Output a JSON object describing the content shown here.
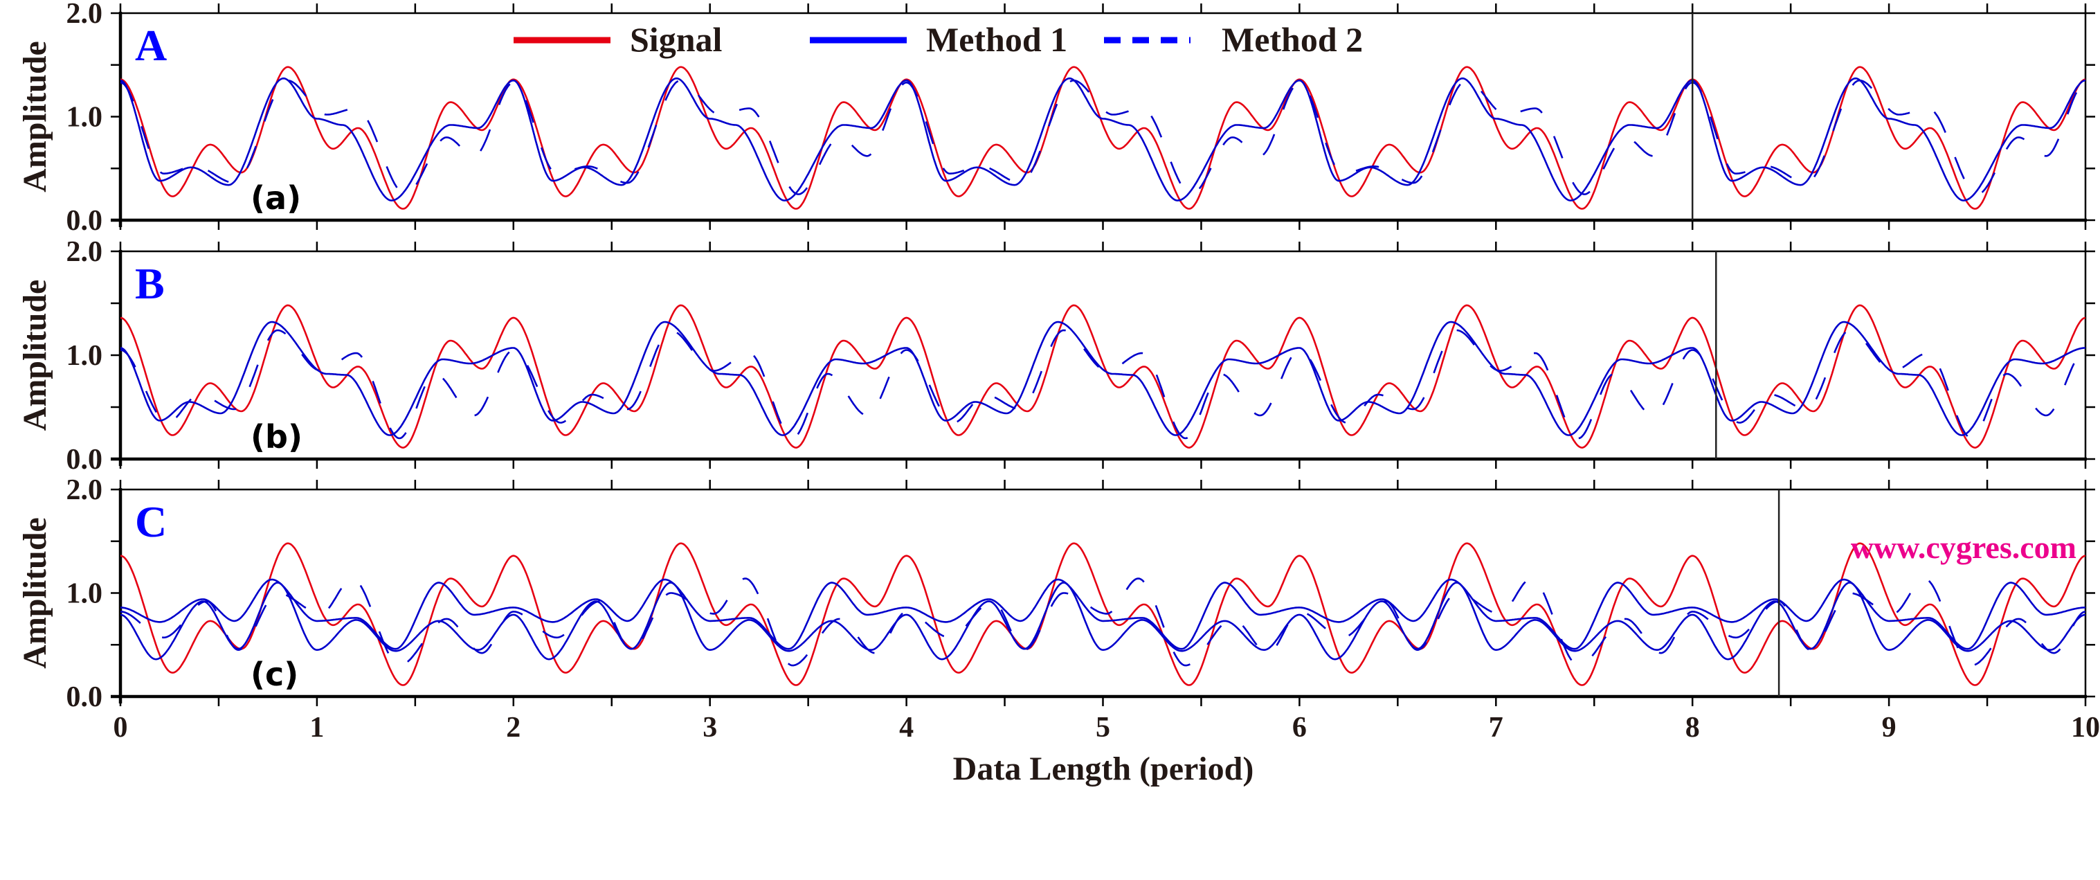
{
  "chart_data": {
    "type": "line",
    "xlabel": "Data Length (period)",
    "ylabel": "Amplitude",
    "xlim": [
      0,
      10
    ],
    "ylim": [
      0,
      2
    ],
    "x_ticks": [
      "0",
      "1",
      "2",
      "3",
      "4",
      "5",
      "6",
      "7",
      "8",
      "9",
      "10"
    ],
    "y_ticks": [
      "0.0",
      "1.0",
      "2.0"
    ],
    "legend": {
      "placement": "top-center",
      "entries": [
        {
          "label": "Signal",
          "style": "solid",
          "color": "#e60012"
        },
        {
          "label": "Method 1",
          "style": "solid",
          "color": "#0000cc"
        },
        {
          "label": "Method 2",
          "style": "dashed",
          "color": "#0000cc"
        }
      ]
    },
    "watermark": "www.cygres.com",
    "signal_period": 2,
    "signal_keypoints": {
      "x": [
        0,
        0.265,
        0.457,
        0.615,
        0.852,
        1.082,
        1.209,
        1.438,
        1.68,
        1.84
      ],
      "y": [
        1.36,
        0.23,
        0.73,
        0.46,
        1.48,
        0.69,
        0.89,
        0.11,
        1.14,
        0.87
      ]
    },
    "panels": [
      {
        "letter": "A",
        "sub_label": "(a)",
        "marker_x": 8.0,
        "series": [
          {
            "name": "Signal",
            "kind": "signal"
          },
          {
            "name": "Method 1",
            "style": "solid",
            "period_keypoints": {
              "x": [
                0,
                0.2,
                0.36,
                0.55,
                0.83,
                1.0,
                1.13,
                1.38,
                1.68,
                1.82
              ],
              "y": [
                1.35,
                0.38,
                0.51,
                0.34,
                1.37,
                0.98,
                0.92,
                0.19,
                0.92,
                0.89
              ]
            }
          },
          {
            "name": "Method 2",
            "style": "dashed",
            "period_keypoints": {
              "x": [
                0,
                0.22,
                0.38,
                0.58,
                0.85,
                1.05,
                1.2,
                1.45,
                1.66,
                1.8
              ],
              "y": [
                1.33,
                0.45,
                0.52,
                0.36,
                1.35,
                1.02,
                1.08,
                0.25,
                0.8,
                0.62
              ]
            }
          }
        ]
      },
      {
        "letter": "B",
        "sub_label": "(b)",
        "marker_x": 8.12,
        "series": [
          {
            "name": "Signal",
            "kind": "signal"
          },
          {
            "name": "Method 1",
            "style": "solid",
            "period_keypoints": {
              "x": [
                0,
                0.2,
                0.35,
                0.51,
                0.77,
                1.05,
                1.15,
                1.37,
                1.64,
                1.78
              ],
              "y": [
                1.07,
                0.37,
                0.55,
                0.44,
                1.32,
                0.82,
                0.81,
                0.23,
                0.96,
                0.92
              ]
            }
          },
          {
            "name": "Method 2",
            "style": "dashed",
            "period_keypoints": {
              "x": [
                0,
                0.24,
                0.4,
                0.58,
                0.8,
                1.02,
                1.2,
                1.42,
                1.6,
                1.8
              ],
              "y": [
                1.05,
                0.35,
                0.62,
                0.48,
                1.24,
                0.85,
                1.02,
                0.2,
                0.82,
                0.42
              ]
            }
          }
        ]
      },
      {
        "letter": "C",
        "sub_label": "(c)",
        "marker_x": 8.44,
        "series": [
          {
            "name": "Signal",
            "kind": "signal"
          },
          {
            "name": "Method 1",
            "style": "solid",
            "period_keypoints": {
              "x": [
                0,
                0.2,
                0.42,
                0.58,
                0.77,
                1.0,
                1.2,
                1.4,
                1.62,
                1.8
              ],
              "y": [
                0.86,
                0.72,
                0.94,
                0.73,
                1.13,
                0.73,
                0.76,
                0.46,
                1.1,
                0.79
              ]
            }
          },
          {
            "name": "Method 1 (second)",
            "style": "solid",
            "period_keypoints": {
              "x": [
                0,
                0.18,
                0.42,
                0.6,
                0.8,
                1.0,
                1.2,
                1.4,
                1.62,
                1.82
              ],
              "y": [
                0.79,
                0.36,
                0.92,
                0.46,
                1.1,
                0.45,
                0.74,
                0.44,
                0.73,
                0.45
              ]
            }
          },
          {
            "name": "Method 2",
            "style": "dashed",
            "period_keypoints": {
              "x": [
                0,
                0.22,
                0.44,
                0.6,
                0.8,
                1.02,
                1.18,
                1.42,
                1.66,
                1.84
              ],
              "y": [
                0.82,
                0.57,
                0.92,
                0.45,
                1.0,
                0.8,
                1.14,
                0.3,
                0.75,
                0.42
              ]
            }
          }
        ]
      }
    ]
  }
}
